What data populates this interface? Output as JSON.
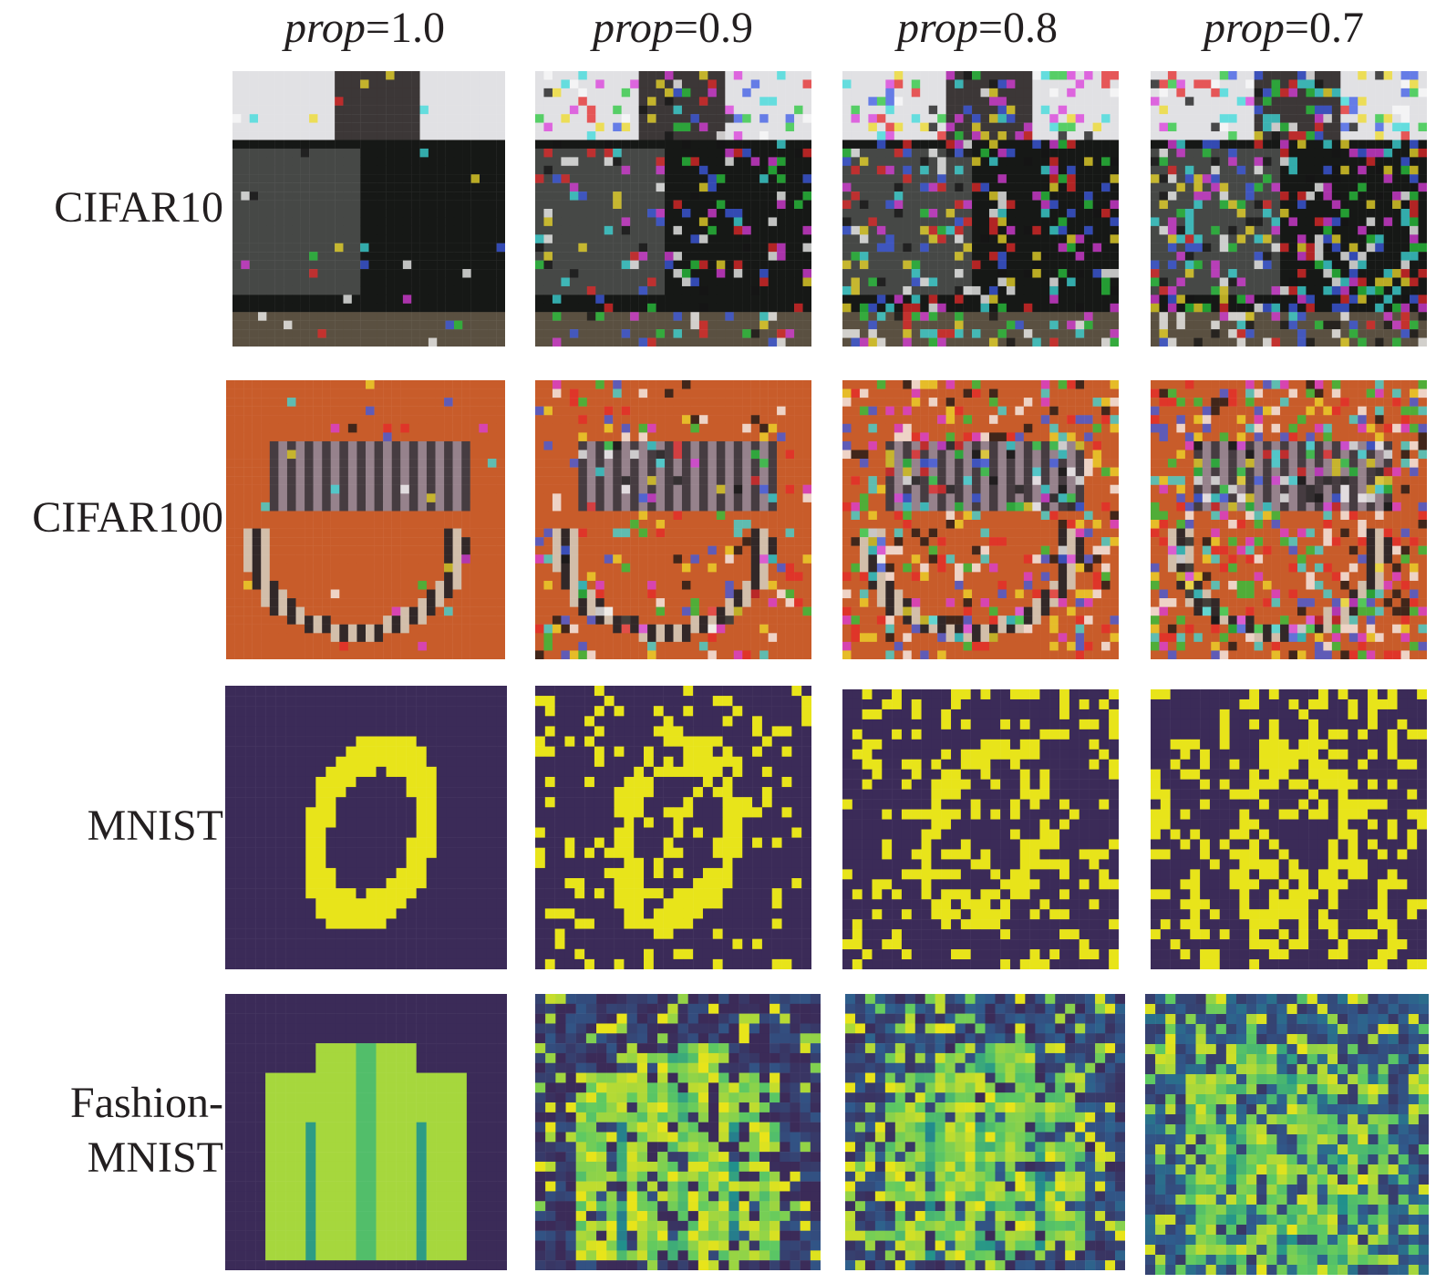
{
  "columns": [
    {
      "var": "prop",
      "eq": "=",
      "value": "1.0"
    },
    {
      "var": "prop",
      "eq": "=",
      "value": "0.9"
    },
    {
      "var": "prop",
      "eq": "=",
      "value": "0.8"
    },
    {
      "var": "prop",
      "eq": "=",
      "value": "0.7"
    }
  ],
  "rows": [
    {
      "line1": "CIFAR10",
      "line2": "",
      "kind": "cifar10"
    },
    {
      "line1": "CIFAR100",
      "line2": "",
      "kind": "cifar100"
    },
    {
      "line1": "MNIST",
      "line2": "",
      "kind": "mnist"
    },
    {
      "line1": "Fashion-",
      "line2": "MNIST",
      "kind": "fashion"
    }
  ],
  "colors": {
    "text": "#231f20",
    "viridis_dark": "#3b2b58",
    "viridis_yellow": "#e8e41a",
    "cifar100_bg": "#c75a2a"
  }
}
